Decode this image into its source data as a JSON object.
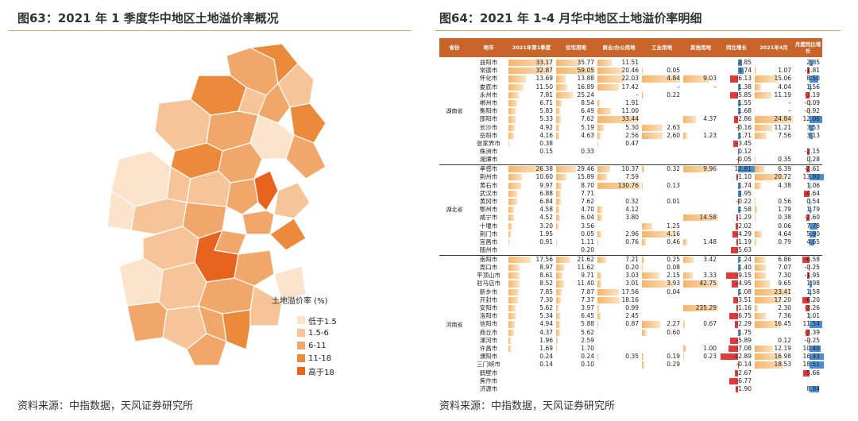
{
  "left": {
    "title": "图63：2021 年 1 季度华中地区土地溢价率概况",
    "source": "资料来源：中指数据，天风证券研究所",
    "legend": {
      "title": "土地溢价率 (%)",
      "items": [
        {
          "label": "低于1.5",
          "color": "#fbe3cc"
        },
        {
          "label": "1.5-6",
          "color": "#f7c49a"
        },
        {
          "label": "6-11",
          "color": "#f2a76a"
        },
        {
          "label": "11-18",
          "color": "#ec8a3c"
        },
        {
          "label": "高于18",
          "color": "#e8631d"
        }
      ]
    }
  },
  "right": {
    "title": "图64：2021 年 1-4 月华中地区土地溢价率明细",
    "source": "资料来源：中指数据，天风证券研究所",
    "headers": [
      "省份",
      "地市",
      "2021年第1季度",
      "住宅用地",
      "商业/办公用地",
      "工业用地",
      "其他用地",
      "同比增长",
      "2021年4月",
      "月度同比增长"
    ],
    "provinces": [
      {
        "name": "湖南省",
        "rows": [
          [
            "益阳市",
            "33.17",
            "35.77",
            "11.51",
            "",
            "",
            "2.85",
            "",
            "2.85"
          ],
          [
            "常德市",
            "32.87",
            "59.05",
            "20.46",
            "0.05",
            "",
            "3.74",
            "1.07",
            "-1.81"
          ],
          [
            "怀化市",
            "13.69",
            "13.88",
            "22.03",
            "4.84",
            "9.03",
            "-6.13",
            "15.06",
            "8.50"
          ],
          [
            "娄底市",
            "11.50",
            "16.89",
            "17.42",
            "–",
            "–",
            "1.38",
            "4.04",
            "1.56"
          ],
          [
            "永州市",
            "7.81",
            "25.24",
            "–",
            "0.22",
            "",
            "-5.85",
            "11.19",
            "-3.19"
          ],
          [
            "郴州市",
            "6.71",
            "8.54",
            "1.91",
            "",
            "",
            "1.55",
            "–",
            "-0.09"
          ],
          [
            "衡阳市",
            "5.83",
            "6.49",
            "11.00",
            "",
            "",
            "1.68",
            "–",
            "-0.92"
          ],
          [
            "邵阳市",
            "5.33",
            "7.62",
            "33.44",
            "",
            "4.37",
            "-2.86",
            "24.84",
            "12.06"
          ],
          [
            "长沙市",
            "4.92",
            "5.19",
            "5.30",
            "2.63",
            "",
            "-0.16",
            "11.21",
            "3.53"
          ],
          [
            "岳阳市",
            "4.16",
            "4.63",
            "2.56",
            "2.60",
            "1.23",
            "1.71",
            "7.56",
            "3.13"
          ],
          [
            "张家界市",
            "0.38",
            "",
            "0.47",
            "",
            "",
            "-3.45",
            "",
            ""
          ],
          [
            "株洲市",
            "0.15",
            "0.33",
            "",
            "",
            "",
            "0.12",
            "",
            "-2.15"
          ],
          [
            "湘潭市",
            "",
            "",
            "",
            "",
            "",
            "-0.05",
            "0.35",
            "0.28"
          ]
        ]
      },
      {
        "name": "湖北省",
        "rows": [
          [
            "孝感市",
            "26.38",
            "29.46",
            "10.37",
            "0.32",
            "9.96",
            "12.81",
            "6.39",
            "-2.61"
          ],
          [
            "荆州市",
            "10.60",
            "15.89",
            "7.59",
            "",
            "",
            "-1.10",
            "20.72",
            "13.80"
          ],
          [
            "黄石市",
            "9.97",
            "8.70",
            "130.76",
            "0.13",
            "",
            "1.74",
            "4.38",
            "1.06"
          ],
          [
            "武汉市",
            "6.88",
            "7.71",
            "",
            "",
            "",
            "1.95",
            "",
            "-4.64"
          ],
          [
            "黄冈市",
            "6.84",
            "7.62",
            "0.32",
            "0.01",
            "",
            "-0.22",
            "0.56",
            "0.54"
          ],
          [
            "鄂州市",
            "4.58",
            "4.70",
            "4.12",
            "",
            "",
            "1.58",
            "1.79",
            "1.79"
          ],
          [
            "咸宁市",
            "4.52",
            "6.04",
            "3.80",
            "",
            "14.58",
            "-1.29",
            "0.38",
            "-2.60"
          ],
          [
            "十堰市",
            "3.20",
            "3.56",
            "",
            "1.25",
            "",
            "-2.02",
            "0.06",
            "7.78"
          ],
          [
            "荆门市",
            "1.95",
            "0.05",
            "2.96",
            "4.16",
            "",
            "-4.29",
            "4.64",
            "5.90"
          ],
          [
            "宜昌市",
            "0.91",
            "1.11",
            "0.76",
            "0.46",
            "1.48",
            "-1.19",
            "0.79",
            "4.65"
          ],
          [
            "随州市",
            "",
            "0.20",
            "",
            "",
            "",
            "-5.63",
            "",
            ""
          ]
        ]
      },
      {
        "name": "河南省",
        "rows": [
          [
            "南阳市",
            "17.56",
            "21.62",
            "7.21",
            "0.25",
            "3.42",
            "1.24",
            "6.86",
            "-6.58"
          ],
          [
            "周口市",
            "8.97",
            "11.62",
            "0.20",
            "0.08",
            "",
            "1.40",
            "7.07",
            "-0.25"
          ],
          [
            "平顶山市",
            "8.61",
            "9.71",
            "3.03",
            "2.15",
            "3.33",
            "-9.15",
            "7.30",
            "-1.95"
          ],
          [
            "驻马店市",
            "8.52",
            "11.40",
            "3.01",
            "3.93",
            "42.75",
            "-4.95",
            "9.65",
            "1.98"
          ],
          [
            "新乡市",
            "7.85",
            "7.87",
            "17.56",
            "0.04",
            "",
            "1.08",
            "23.41",
            "1.58"
          ],
          [
            "开封市",
            "7.30",
            "7.37",
            "18.16",
            "",
            "",
            "-3.51",
            "17.20",
            "-6.20"
          ],
          [
            "安阳市",
            "5.62",
            "3.97",
            "0.99",
            "",
            "235.29",
            "-1.16",
            "2.30",
            "-3.26"
          ],
          [
            "洛阳市",
            "5.34",
            "6.45",
            "2.45",
            "",
            "",
            "-6.75",
            "7.36",
            "1.01"
          ],
          [
            "信阳市",
            "4.94",
            "5.88",
            "0.87",
            "2.27",
            "0.67",
            "-2.29",
            "16.45",
            "11.54"
          ],
          [
            "商丘市",
            "4.37",
            "5.62",
            "",
            "0.60",
            "",
            "1.75",
            "",
            "-3.39"
          ],
          [
            "漯河市",
            "1.96",
            "2.59",
            "",
            "",
            "",
            "-5.89",
            "0.12",
            "-0.25"
          ],
          [
            "许昌市",
            "1.69",
            "1.70",
            "",
            "",
            "1.00",
            "-7.08",
            "12.19",
            "10.40"
          ],
          [
            "濮阳市",
            "0.24",
            "0.24",
            "0.35",
            "0.19",
            "0.23",
            "-12.89",
            "16.98",
            "16.43"
          ],
          [
            "三门峡市",
            "0.14",
            "0.10",
            "",
            "0.29",
            "",
            "-0.14",
            "18.53",
            "18.51"
          ],
          [
            "鹤壁市",
            "",
            "",
            "",
            "",
            "",
            "-2.67",
            "",
            "-5.66"
          ],
          [
            "焦作市",
            "",
            "",
            "",
            "",
            "",
            "-6.77",
            "",
            ""
          ],
          [
            "济源市",
            "",
            "",
            "",
            "",
            "",
            "-1.90",
            "",
            "8.94"
          ]
        ]
      }
    ]
  }
}
